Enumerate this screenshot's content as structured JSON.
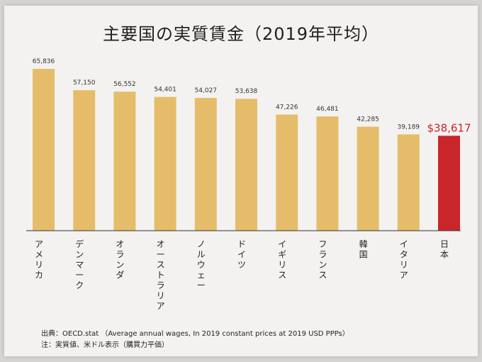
{
  "chart_data": {
    "type": "bar",
    "title": "主要国の実質賃金（2019年平均）",
    "categories": [
      "アメリカ",
      "デンマーク",
      "オランダ",
      "オーストラリア",
      "ノルウェー",
      "ドイツ",
      "イギリス",
      "フランス",
      "韓国",
      "イタリア",
      "日本"
    ],
    "values": [
      65836,
      57150,
      56552,
      54401,
      54027,
      53638,
      47226,
      46481,
      42285,
      39189,
      38617
    ],
    "value_labels": [
      "65,836",
      "57,150",
      "56,552",
      "54,401",
      "54,027",
      "53,638",
      "47,226",
      "46,481",
      "42,285",
      "39,189",
      "$38,617"
    ],
    "highlight_index": 10,
    "ylim": [
      0,
      65836
    ],
    "xlabel": "",
    "ylabel": "",
    "grid": false,
    "colors": {
      "bar": "#e5bd6a",
      "highlight": "#c8262a",
      "highlight_label": "#c8262a"
    }
  },
  "footer": {
    "source": "出典：OECD.stat （Average annual wages, In 2019 constant prices at 2019 USD PPPs）",
    "note": "注：実質値、米ドル表示（購買力平価）"
  }
}
